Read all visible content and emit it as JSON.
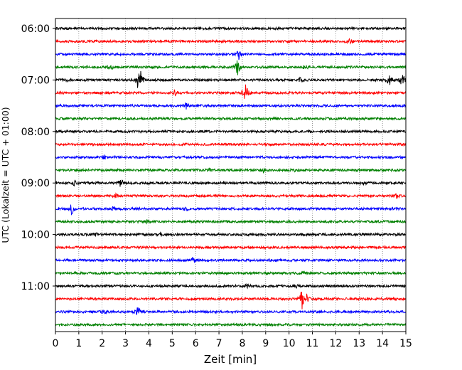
{
  "chart_data": {
    "type": "line",
    "title": "",
    "xlabel": "Zeit  [min]",
    "ylabel": "UTC (Lokalzeit = UTC + 01:00)",
    "xlim": [
      0,
      15
    ],
    "x_ticks": [
      "0",
      "1",
      "2",
      "3",
      "4",
      "5",
      "6",
      "7",
      "8",
      "9",
      "10",
      "11",
      "12",
      "13",
      "14",
      "15"
    ],
    "y_ticks": [
      "06:00",
      "07:00",
      "08:00",
      "09:00",
      "10:00",
      "11:00"
    ],
    "grid": "vertical dotted",
    "trace_interval_minutes": 15,
    "first_trace": "06:00",
    "colors_cycle": [
      "#000000",
      "#ff0000",
      "#0000ff",
      "#008000"
    ],
    "traces": [
      {
        "start": "06:00",
        "color": "#000000",
        "events": []
      },
      {
        "start": "06:15",
        "color": "#ff0000",
        "events": [
          {
            "t": 12.6,
            "amp": 0.3
          }
        ]
      },
      {
        "start": "06:30",
        "color": "#0000ff",
        "events": [
          {
            "t": 7.85,
            "amp": 0.6
          }
        ]
      },
      {
        "start": "06:45",
        "color": "#008000",
        "events": [
          {
            "t": 2.35,
            "amp": 0.4
          },
          {
            "t": 7.8,
            "amp": 1.0
          },
          {
            "t": 10.7,
            "amp": 0.3
          }
        ]
      },
      {
        "start": "07:00",
        "color": "#000000",
        "events": [
          {
            "t": 0.4,
            "amp": 0.5
          },
          {
            "t": 3.5,
            "amp": 1.0
          },
          {
            "t": 3.65,
            "amp": 0.9
          },
          {
            "t": 10.5,
            "amp": 0.4
          },
          {
            "t": 14.3,
            "amp": 0.7
          },
          {
            "t": 14.85,
            "amp": 0.9
          }
        ]
      },
      {
        "start": "07:15",
        "color": "#ff0000",
        "events": [
          {
            "t": 5.1,
            "amp": 0.3
          },
          {
            "t": 8.15,
            "amp": 1.3
          }
        ]
      },
      {
        "start": "07:30",
        "color": "#0000ff",
        "events": [
          {
            "t": 5.6,
            "amp": 0.4
          }
        ]
      },
      {
        "start": "07:45",
        "color": "#008000",
        "events": []
      },
      {
        "start": "08:00",
        "color": "#000000",
        "events": []
      },
      {
        "start": "08:15",
        "color": "#ff0000",
        "events": []
      },
      {
        "start": "08:30",
        "color": "#0000ff",
        "events": [
          {
            "t": 2.1,
            "amp": 0.2
          }
        ]
      },
      {
        "start": "08:45",
        "color": "#008000",
        "events": [
          {
            "t": 6.6,
            "amp": 0.2
          },
          {
            "t": 8.9,
            "amp": 0.3
          },
          {
            "t": 10.3,
            "amp": 0.2
          }
        ]
      },
      {
        "start": "09:00",
        "color": "#000000",
        "events": [
          {
            "t": 0.8,
            "amp": 0.3
          },
          {
            "t": 2.8,
            "amp": 0.6
          },
          {
            "t": 7.2,
            "amp": 0.2
          },
          {
            "t": 13.2,
            "amp": 0.2
          }
        ]
      },
      {
        "start": "09:15",
        "color": "#ff0000",
        "events": [
          {
            "t": 2.6,
            "amp": 0.2
          },
          {
            "t": 14.6,
            "amp": 0.3
          }
        ]
      },
      {
        "start": "09:30",
        "color": "#0000ff",
        "events": [
          {
            "t": 0.7,
            "amp": 0.7
          },
          {
            "t": 2.5,
            "amp": 0.3
          },
          {
            "t": 5.6,
            "amp": 0.2
          }
        ]
      },
      {
        "start": "09:45",
        "color": "#008000",
        "events": [
          {
            "t": 3.9,
            "amp": 0.2
          }
        ]
      },
      {
        "start": "10:00",
        "color": "#000000",
        "events": [
          {
            "t": 1.7,
            "amp": 0.2
          },
          {
            "t": 4.5,
            "amp": 0.2
          }
        ]
      },
      {
        "start": "10:15",
        "color": "#ff0000",
        "events": []
      },
      {
        "start": "10:30",
        "color": "#0000ff",
        "events": [
          {
            "t": 5.9,
            "amp": 0.4
          }
        ]
      },
      {
        "start": "10:45",
        "color": "#008000",
        "events": [
          {
            "t": 10.6,
            "amp": 0.3
          }
        ]
      },
      {
        "start": "11:00",
        "color": "#000000",
        "events": [
          {
            "t": 8.2,
            "amp": 0.2
          },
          {
            "t": 10.3,
            "amp": 0.2
          }
        ]
      },
      {
        "start": "11:15",
        "color": "#ff0000",
        "events": [
          {
            "t": 10.55,
            "amp": 1.2
          },
          {
            "t": 10.75,
            "amp": 0.5
          }
        ]
      },
      {
        "start": "11:30",
        "color": "#0000ff",
        "events": [
          {
            "t": 2.1,
            "amp": 0.3
          },
          {
            "t": 3.55,
            "amp": 1.0
          }
        ]
      },
      {
        "start": "11:45",
        "color": "#008000",
        "events": []
      }
    ]
  }
}
